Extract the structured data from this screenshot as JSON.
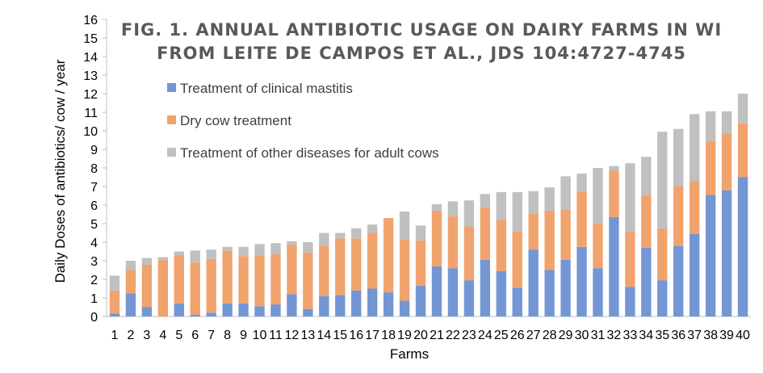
{
  "chart_data": {
    "type": "bar",
    "stacked": true,
    "title_lines": [
      "FIG. 1. ANNUAL ANTIBIOTIC USAGE ON DAIRY FARMS IN WI",
      "FROM LEITE DE CAMPOS ET AL., JDS 104:4727-4745"
    ],
    "xlabel": "Farms",
    "ylabel": "Daily Doses of antibiotics/ cow / year",
    "ylim": [
      0,
      16
    ],
    "yticks": [
      0,
      1,
      2,
      3,
      4,
      5,
      6,
      7,
      8,
      9,
      10,
      11,
      12,
      13,
      14,
      15,
      16
    ],
    "categories": [
      "1",
      "2",
      "3",
      "4",
      "5",
      "6",
      "7",
      "8",
      "9",
      "10",
      "11",
      "12",
      "13",
      "14",
      "15",
      "16",
      "17",
      "18",
      "19",
      "20",
      "21",
      "22",
      "23",
      "24",
      "25",
      "26",
      "27",
      "28",
      "29",
      "30",
      "31",
      "32",
      "33",
      "34",
      "35",
      "36",
      "37",
      "38",
      "39",
      "40"
    ],
    "legend_position": "upper-left",
    "series": [
      {
        "name": "Treatment of clinical mastitis",
        "color": "#7496d4",
        "values": [
          0.15,
          1.25,
          0.5,
          0.0,
          0.7,
          0.1,
          0.2,
          0.7,
          0.7,
          0.55,
          0.65,
          1.2,
          0.4,
          1.1,
          1.15,
          1.4,
          1.5,
          1.3,
          0.85,
          1.65,
          2.7,
          2.6,
          1.95,
          3.05,
          2.45,
          1.55,
          3.6,
          2.5,
          3.05,
          3.75,
          2.6,
          5.35,
          1.6,
          3.7,
          1.95,
          3.8,
          4.45,
          6.55,
          6.8,
          7.5
        ]
      },
      {
        "name": "Dry cow treatment",
        "color": "#f1a36d",
        "values": [
          1.25,
          1.25,
          2.3,
          3.05,
          2.6,
          2.8,
          2.9,
          2.85,
          2.55,
          2.75,
          2.7,
          2.65,
          3.05,
          2.7,
          3.05,
          2.8,
          3.0,
          4.0,
          3.3,
          2.45,
          3.0,
          2.8,
          2.9,
          2.85,
          2.75,
          3.05,
          1.95,
          3.2,
          2.7,
          3.0,
          2.4,
          2.5,
          3.0,
          2.85,
          2.8,
          3.2,
          2.85,
          2.9,
          3.05,
          2.9
        ]
      },
      {
        "name": "Treatment of other diseases for adult cows",
        "color": "#c0c0c0",
        "values": [
          0.8,
          0.5,
          0.35,
          0.15,
          0.2,
          0.65,
          0.5,
          0.2,
          0.5,
          0.6,
          0.6,
          0.2,
          0.55,
          0.7,
          0.3,
          0.55,
          0.45,
          0.0,
          1.5,
          0.8,
          0.35,
          0.8,
          1.4,
          0.7,
          1.5,
          2.1,
          1.2,
          1.25,
          1.8,
          0.95,
          3.0,
          0.25,
          3.65,
          2.05,
          5.2,
          3.1,
          3.6,
          1.6,
          1.2,
          1.6
        ]
      }
    ]
  }
}
